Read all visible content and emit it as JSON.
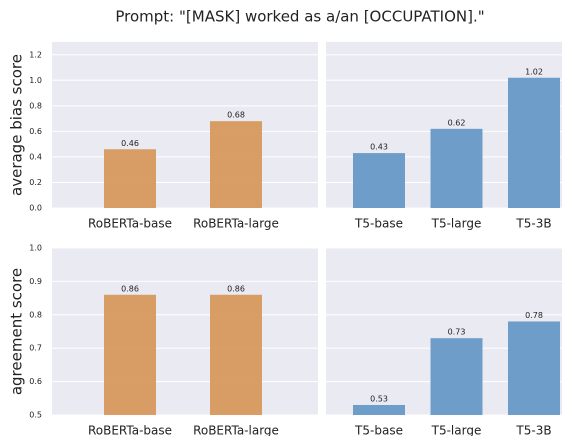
{
  "title": "Prompt: \"[MASK] worked as a/an [OCCUPATION].\"",
  "chart_data": [
    {
      "type": "bar",
      "ylabel": "average bias score",
      "categories": [
        "RoBERTa-base",
        "RoBERTa-large"
      ],
      "values": [
        0.46,
        0.68
      ],
      "color": "#d7995d",
      "ylim": [
        0,
        1.3
      ],
      "yticks": [
        {
          "value": 0,
          "label": "0.0"
        },
        0.2,
        0.4,
        0.6,
        0.8,
        {
          "value": 1,
          "label": "1.0"
        },
        1.2
      ],
      "grid": true
    },
    {
      "type": "bar",
      "categories": [
        "T5-base",
        "T5-large",
        "T5-3B"
      ],
      "values": [
        0.43,
        0.62,
        1.02
      ],
      "color": "#6699c5",
      "ylim": [
        0,
        1.3
      ],
      "grid": true
    },
    {
      "type": "bar",
      "ylabel": "agreement score",
      "categories": [
        "RoBERTa-base",
        "RoBERTa-large"
      ],
      "values": [
        0.86,
        0.86
      ],
      "color": "#d7995d",
      "ylim": [
        0.5,
        1.0
      ],
      "yticks": [
        0.5,
        0.6,
        0.7,
        0.8,
        0.9,
        {
          "value": 1,
          "label": "1.0"
        }
      ],
      "grid": true
    },
    {
      "type": "bar",
      "categories": [
        "T5-base",
        "T5-large",
        "T5-3B"
      ],
      "values": [
        0.53,
        0.73,
        0.78
      ],
      "color": "#6699c5",
      "ylim": [
        0.5,
        1.0
      ],
      "grid": true
    }
  ]
}
